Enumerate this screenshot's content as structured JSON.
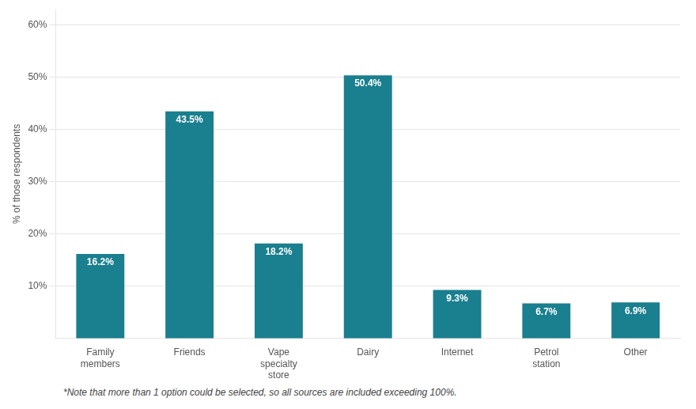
{
  "chart_data": {
    "type": "bar",
    "categories": [
      "Family\nmembers",
      "Friends",
      "Vape\nspecialty\nstore",
      "Dairy",
      "Internet",
      "Petrol\nstation",
      "Other"
    ],
    "values": [
      16.2,
      43.5,
      18.2,
      50.4,
      9.3,
      6.7,
      6.9
    ],
    "value_labels": [
      "16.2%",
      "43.5%",
      "18.2%",
      "50.4%",
      "9.3%",
      "6.7%",
      "6.9%"
    ],
    "data_labels": true,
    "color": "#1a7f8e",
    "ylabel": "% of those respondents",
    "ylim": [
      0,
      63
    ],
    "yticks": [
      {
        "value": 10,
        "label": "10%"
      },
      {
        "value": 20,
        "label": "20%"
      },
      {
        "value": 30,
        "label": "30%"
      },
      {
        "value": 40,
        "label": "40%"
      },
      {
        "value": 50,
        "label": "50%"
      },
      {
        "value": 60,
        "label": "60%"
      }
    ],
    "grid": true,
    "footnote": "*Note that more than 1 option could be selected, so all sources are included exceeding 100%."
  }
}
